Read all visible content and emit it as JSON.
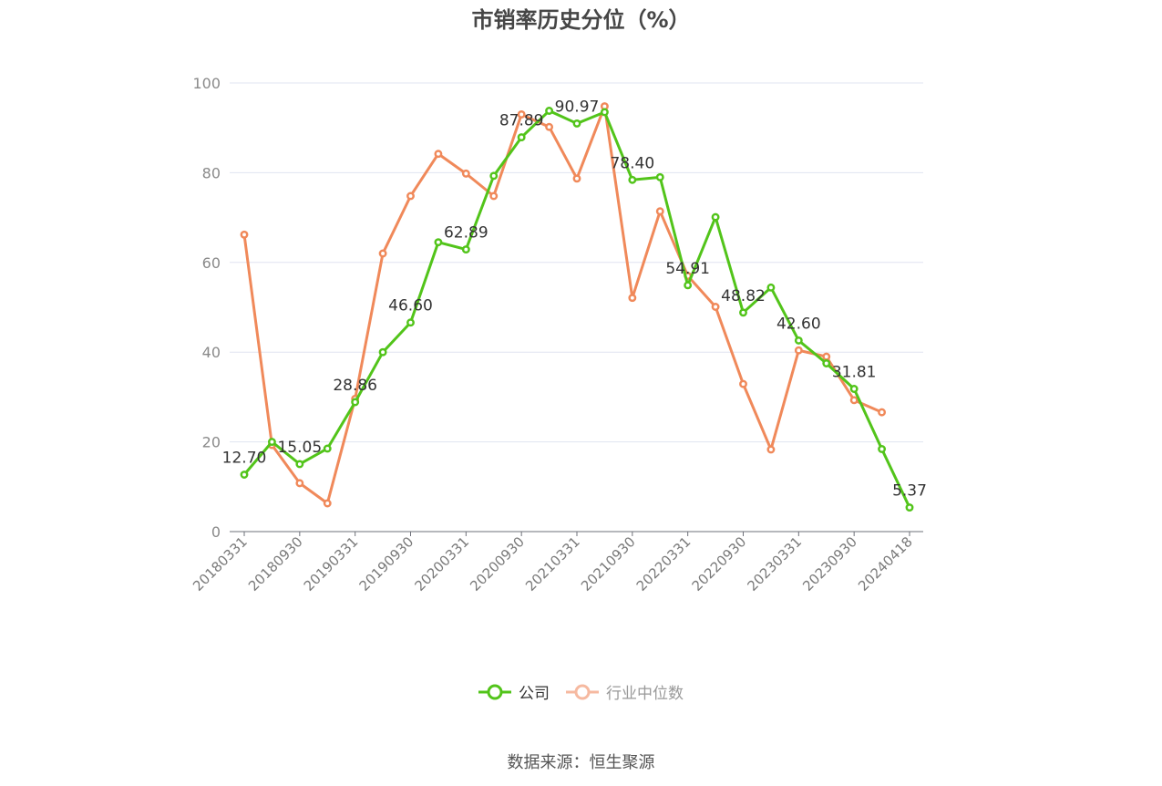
{
  "chart_data": {
    "type": "line",
    "title": "市销率历史分位（%）",
    "xlabel": "",
    "ylabel": "",
    "ylim": [
      0,
      100
    ],
    "yticks": [
      0,
      20,
      40,
      60,
      80,
      100
    ],
    "grid": true,
    "legend_position": "bottom-center",
    "x": [
      "20180331",
      "20180630",
      "20180930",
      "20181231",
      "20190331",
      "20190630",
      "20190930",
      "20191231",
      "20200331",
      "20200630",
      "20200930",
      "20201231",
      "20210331",
      "20210630",
      "20210930",
      "20211231",
      "20220331",
      "20220630",
      "20220930",
      "20221231",
      "20230331",
      "20230630",
      "20230930",
      "20231231",
      "20240418"
    ],
    "x_tick_labels": [
      "20180331",
      "20180930",
      "20190331",
      "20190930",
      "20200331",
      "20200930",
      "20210331",
      "20210930",
      "20220331",
      "20220930",
      "20230331",
      "20230930",
      "20240418"
    ],
    "series": [
      {
        "name": "公司",
        "color": "#52c41a",
        "values": [
          12.7,
          20.0,
          15.05,
          18.5,
          28.86,
          40.0,
          46.6,
          64.5,
          62.89,
          79.3,
          87.89,
          93.8,
          90.97,
          93.5,
          78.4,
          79.0,
          54.91,
          70.1,
          48.82,
          54.4,
          42.6,
          37.5,
          31.81,
          18.4,
          5.37
        ],
        "data_labels": {
          "0": "12.70",
          "2": "15.05",
          "4": "28.86",
          "6": "46.60",
          "8": "62.89",
          "10": "87.89",
          "12": "90.97",
          "14": "78.40",
          "16": "54.91",
          "18": "48.82",
          "20": "42.60",
          "22": "31.81",
          "24": "5.37"
        }
      },
      {
        "name": "行业中位数",
        "color": "#f0895a",
        "values": [
          66.2,
          19.3,
          10.8,
          6.3,
          29.6,
          62.0,
          74.8,
          84.2,
          79.8,
          74.8,
          93.0,
          90.2,
          78.7,
          94.8,
          52.1,
          71.4,
          57.0,
          50.1,
          32.9,
          18.3,
          40.4,
          39.0,
          29.3,
          26.6,
          null
        ]
      }
    ]
  },
  "legend": {
    "items": [
      {
        "label": "公司",
        "color": "#52c41a",
        "active": true
      },
      {
        "label": "行业中位数",
        "color": "#f0895a",
        "active": false
      }
    ]
  },
  "source": "数据来源：恒生聚源"
}
